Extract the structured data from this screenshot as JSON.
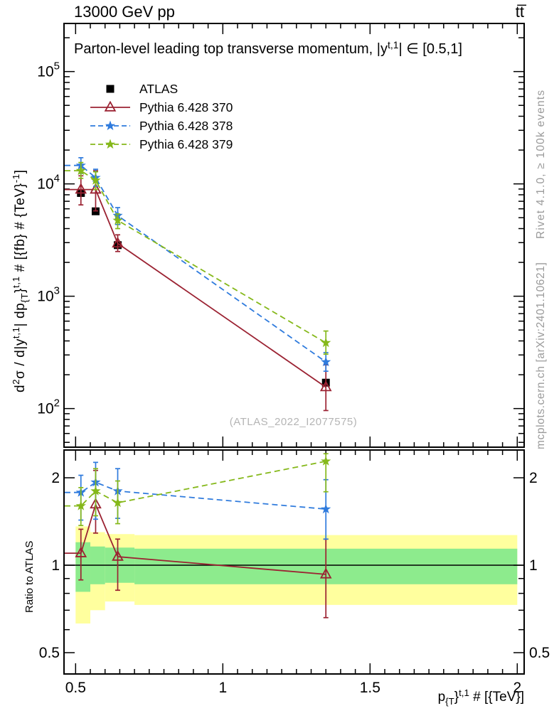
{
  "header": {
    "left": "13000 GeV pp",
    "right": "tt̅"
  },
  "panel_title": {
    "parts": [
      {
        "t": "Parton-level leading top transverse momentum, |y",
        "s": "n"
      },
      {
        "t": "t,1",
        "s": "sup"
      },
      {
        "t": "| ∈ [0.5,1]",
        "s": "n"
      }
    ]
  },
  "legend": {
    "items": [
      {
        "label": "ATLAS",
        "color": "#000000",
        "marker": "square",
        "line": "none"
      },
      {
        "label": "Pythia 6.428 370",
        "color": "#9b2232",
        "marker": "triangle-open",
        "line": "solid"
      },
      {
        "label": "Pythia 6.428 378",
        "color": "#2f7bdd",
        "marker": "star",
        "line": "dashed"
      },
      {
        "label": "Pythia 6.428 379",
        "color": "#85b81a",
        "marker": "star",
        "line": "dashed"
      }
    ]
  },
  "watermark": "(ATLAS_2022_I2077575)",
  "side_notes": {
    "top_right": "Rivet 4.1.0, ≥ 100k events",
    "bottom_right": "mcplots.cern.ch [arXiv:2401.10621]"
  },
  "axis_labels": {
    "ratio_y": "Ratio to ATLAS",
    "y_main_parts": [
      {
        "t": "d",
        "s": "n"
      },
      {
        "t": "2",
        "s": "sup"
      },
      {
        "t": "σ / d|y",
        "s": "n"
      },
      {
        "t": "t,1",
        "s": "sup"
      },
      {
        "t": "| dp",
        "s": "n"
      },
      {
        "t": "{T",
        "s": "sub"
      },
      {
        "t": "}",
        "s": "n"
      },
      {
        "t": "t,1",
        "s": "sup"
      },
      {
        "t": " # [{fb} # {TeV}",
        "s": "n"
      },
      {
        "t": "-1",
        "s": "sup"
      },
      {
        "t": "]",
        "s": "n"
      }
    ],
    "x_parts": [
      {
        "t": "p",
        "s": "n"
      },
      {
        "t": "{T",
        "s": "sub"
      },
      {
        "t": "}",
        "s": "n"
      },
      {
        "t": "t,1",
        "s": "sup"
      },
      {
        "t": " # [{TeV}]",
        "s": "n"
      }
    ]
  },
  "chart_data": {
    "type": "line",
    "title": "Parton-level leading top transverse momentum, |y^{t,1}| ∈ [0.5,1]",
    "xlabel": "p_T^{t,1} [TeV]",
    "ylabel": "d2σ / d|y^{t,1}| dp_T^{t,1} [fb/TeV]",
    "legend_position": "top-left-inside",
    "grid": false,
    "xlim": [
      0.4606,
      2.0234
    ],
    "x": [
      0.518,
      0.568,
      0.643,
      1.35
    ],
    "xticks": [
      {
        "v": 0.5,
        "label": "0.5"
      },
      {
        "v": 1,
        "label": "1"
      },
      {
        "v": 1.5,
        "label": "1.5"
      },
      {
        "v": 2,
        "label": "2"
      }
    ],
    "x_minor_step": 0.05,
    "main_panel": {
      "yscale": "log",
      "ylim": [
        45.3,
        268000
      ],
      "yticks": [
        {
          "v": 100,
          "label": "10",
          "exp": "2"
        },
        {
          "v": 1000,
          "label": "10",
          "exp": "3"
        },
        {
          "v": 10000,
          "label": "10",
          "exp": "4"
        },
        {
          "v": 100000,
          "label": "10",
          "exp": "5"
        }
      ],
      "series": [
        {
          "name": "ATLAS",
          "color": "#000000",
          "marker": "square",
          "line": "none",
          "values": [
            8300,
            5700,
            2850,
            170
          ]
        },
        {
          "name": "Pythia 6.428 370",
          "color": "#9b2232",
          "marker": "triangle-open",
          "line": "solid",
          "values": [
            8900,
            8900,
            2950,
            155
          ],
          "err_lo": [
            2400,
            3150,
            450,
            59
          ],
          "err_hi": [
            2900,
            4200,
            570,
            90
          ]
        },
        {
          "name": "Pythia 6.428 378",
          "color": "#2f7bdd",
          "marker": "star",
          "line": "dashed",
          "values": [
            14600,
            11350,
            5220,
            260
          ],
          "err_lo": [
            2200,
            1850,
            870,
            45
          ],
          "err_hi": [
            2500,
            2150,
            930,
            55
          ]
        },
        {
          "name": "Pythia 6.428 379",
          "color": "#85b81a",
          "marker": "star",
          "line": "dashed",
          "values": [
            13100,
            10760,
            4730,
            385
          ],
          "err_lo": [
            1900,
            1860,
            730,
            80
          ],
          "err_hi": [
            2400,
            2040,
            670,
            105
          ]
        }
      ]
    },
    "ratio_panel": {
      "yscale": "log",
      "ylim": [
        0.4223,
        2.492
      ],
      "yticks": [
        {
          "v": 0.5,
          "label": "0.5"
        },
        {
          "v": 1,
          "label": "1"
        },
        {
          "v": 2,
          "label": "2"
        }
      ],
      "y_minor": [
        0.6,
        0.7,
        0.8,
        0.9
      ],
      "reference_line": 1,
      "band_colors": {
        "outer": "#ffff9e",
        "inner": "#8deb8d"
      },
      "bands": [
        {
          "x0": 0.5,
          "x1": 0.55,
          "outer": [
            0.63,
            1.36
          ],
          "inner": [
            0.81,
            1.2
          ]
        },
        {
          "x0": 0.55,
          "x1": 0.6,
          "outer": [
            0.7,
            1.3
          ],
          "inner": [
            0.86,
            1.16
          ]
        },
        {
          "x0": 0.6,
          "x1": 0.7,
          "outer": [
            0.75,
            1.28
          ],
          "inner": [
            0.87,
            1.15
          ]
        },
        {
          "x0": 0.7,
          "x1": 2.0,
          "outer": [
            0.73,
            1.27
          ],
          "inner": [
            0.86,
            1.14
          ]
        }
      ],
      "series": [
        {
          "name": "Pythia 6.428 370",
          "values": [
            1.1,
            1.62,
            1.07,
            0.93
          ],
          "err_lo": [
            0.21,
            0.33,
            0.25,
            0.27
          ],
          "err_hi": [
            0.23,
            0.5,
            0.16,
            0.3
          ]
        },
        {
          "name": "Pythia 6.428 378",
          "values": [
            1.78,
            1.93,
            1.8,
            1.56
          ],
          "err_lo": [
            0.35,
            0.49,
            0.35,
            0.33
          ],
          "err_hi": [
            0.26,
            0.33,
            0.35,
            0.41
          ]
        },
        {
          "name": "Pythia 6.428 379",
          "values": [
            1.6,
            1.8,
            1.64,
            2.28
          ],
          "err_lo": [
            0.23,
            0.32,
            0.25,
            0.49
          ],
          "err_hi": [
            0.25,
            0.35,
            0.31,
            0.14
          ]
        }
      ]
    }
  }
}
